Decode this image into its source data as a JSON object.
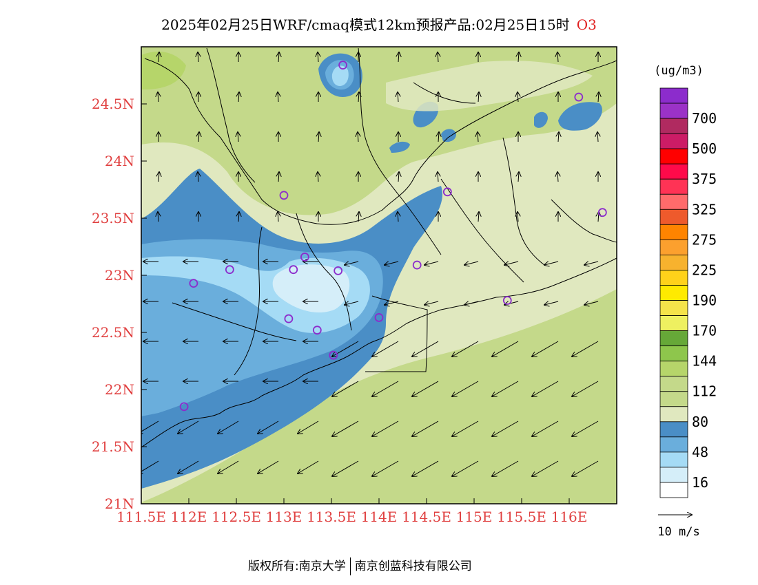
{
  "title": "2025年02月25日WRF/cmaq模式12km预报产品:02月25日15时",
  "pollutant": "O3",
  "map": {
    "lon_range": [
      111.5,
      116.5
    ],
    "lat_range": [
      21.0,
      25.0
    ],
    "x_ticks": [
      "111.5E",
      "112E",
      "112.5E",
      "113E",
      "113.5E",
      "114E",
      "114.5E",
      "115E",
      "115.5E",
      "116E"
    ],
    "y_ticks": [
      "21N",
      "21.5N",
      "22N",
      "22.5N",
      "23N",
      "23.5N",
      "24N",
      "24.5N"
    ],
    "tick_label_color": "#e04040"
  },
  "legend": {
    "unit": "(ug/m3)",
    "levels": [
      {
        "label": "",
        "color": "#ffffff"
      },
      {
        "label": "16",
        "color": "#d5eef9"
      },
      {
        "label": "",
        "color": "#a5dbf5"
      },
      {
        "label": "48",
        "color": "#6aaedc"
      },
      {
        "label": "",
        "color": "#4a8ec6"
      },
      {
        "label": "80",
        "color": "#e0e8bf"
      },
      {
        "label": "",
        "color": "#c4d98a"
      },
      {
        "label": "112",
        "color": "#c4d98a"
      },
      {
        "label": "",
        "color": "#b6d56a"
      },
      {
        "label": "144",
        "color": "#8ec64c"
      },
      {
        "label": "",
        "color": "#66a838"
      },
      {
        "label": "170",
        "color": "#eef060"
      },
      {
        "label": "",
        "color": "#f5e34a"
      },
      {
        "label": "190",
        "color": "#ffea00"
      },
      {
        "label": "",
        "color": "#ffd21a"
      },
      {
        "label": "225",
        "color": "#f7b22e"
      },
      {
        "label": "",
        "color": "#fca02e"
      },
      {
        "label": "275",
        "color": "#ff8400"
      },
      {
        "label": "",
        "color": "#ee5a2c"
      },
      {
        "label": "325",
        "color": "#ff6b6b"
      },
      {
        "label": "",
        "color": "#ff3355"
      },
      {
        "label": "375",
        "color": "#ff0a4a"
      },
      {
        "label": "",
        "color": "#ff0000"
      },
      {
        "label": "500",
        "color": "#cc1c66"
      },
      {
        "label": "",
        "color": "#b02a60"
      },
      {
        "label": "700",
        "color": "#9b32c7"
      },
      {
        "label": "",
        "color": "#8c2ccc"
      }
    ]
  },
  "wind_reference": "10 m/s",
  "footer": {
    "left": "版权所有:南京大学",
    "right": "南京创蓝科技有限公司"
  },
  "stations": [
    {
      "lon": 113.62,
      "lat": 24.84
    },
    {
      "lon": 116.1,
      "lat": 24.56
    },
    {
      "lon": 113.0,
      "lat": 23.7
    },
    {
      "lon": 114.72,
      "lat": 23.73
    },
    {
      "lon": 116.35,
      "lat": 23.55
    },
    {
      "lon": 112.43,
      "lat": 23.05
    },
    {
      "lon": 113.1,
      "lat": 23.05
    },
    {
      "lon": 113.22,
      "lat": 23.16
    },
    {
      "lon": 113.57,
      "lat": 23.04
    },
    {
      "lon": 114.4,
      "lat": 23.09
    },
    {
      "lon": 112.05,
      "lat": 22.93
    },
    {
      "lon": 113.05,
      "lat": 22.62
    },
    {
      "lon": 113.35,
      "lat": 22.52
    },
    {
      "lon": 114.0,
      "lat": 22.63
    },
    {
      "lon": 113.52,
      "lat": 22.3
    },
    {
      "lon": 115.35,
      "lat": 22.78
    },
    {
      "lon": 111.95,
      "lat": 21.85
    }
  ]
}
